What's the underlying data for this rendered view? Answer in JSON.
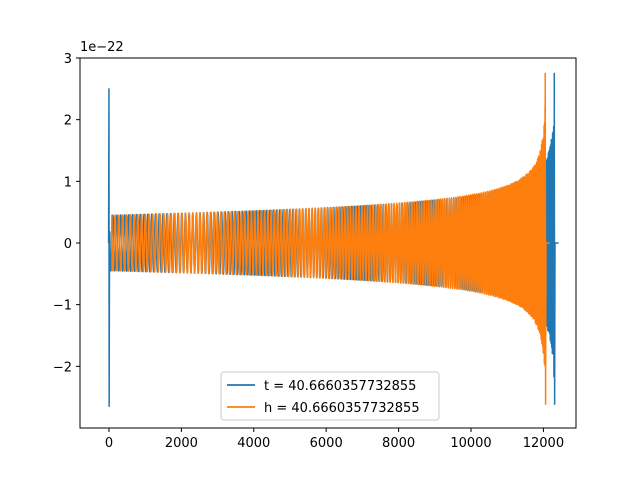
{
  "chart_data": {
    "type": "line",
    "title": "",
    "xlabel": "",
    "ylabel": "",
    "xlim": [
      -800,
      12900
    ],
    "ylim": [
      -3e-22,
      3e-22
    ],
    "y_offset_label": "1e−22",
    "y_scale": 1e-22,
    "xticks": [
      0,
      2000,
      4000,
      6000,
      8000,
      10000,
      12000
    ],
    "yticks": [
      -2,
      -1,
      0,
      1,
      2,
      3
    ],
    "xtick_labels": [
      "0",
      "2000",
      "4000",
      "6000",
      "8000",
      "10000",
      "12000"
    ],
    "ytick_labels": [
      "−2",
      "−1",
      "0",
      "1",
      "2",
      "3"
    ],
    "grid": false,
    "legend_position": "lower center",
    "series": [
      {
        "name": "t = 40.6660357732855",
        "color": "#1f77b4",
        "description": "chirp waveform, burst near x=0, oscillation amplitude ~0.45e-22 rising to ~2.75e-22 near x=12300",
        "start_x": 0,
        "merger_x": 12300,
        "early_amplitude": 0.45,
        "peak_amplitude": 2.75,
        "initial_spike": [
          2.5,
          -2.65
        ]
      },
      {
        "name": "h = 40.6660357732855",
        "color": "#ff7f0e",
        "description": "same chirp shifted earlier, merger near x=12050",
        "start_x": 80,
        "merger_x": 12050,
        "early_amplitude": 0.45,
        "peak_amplitude": 2.75,
        "initial_spike": [
          0.45,
          -0.45
        ]
      }
    ]
  }
}
